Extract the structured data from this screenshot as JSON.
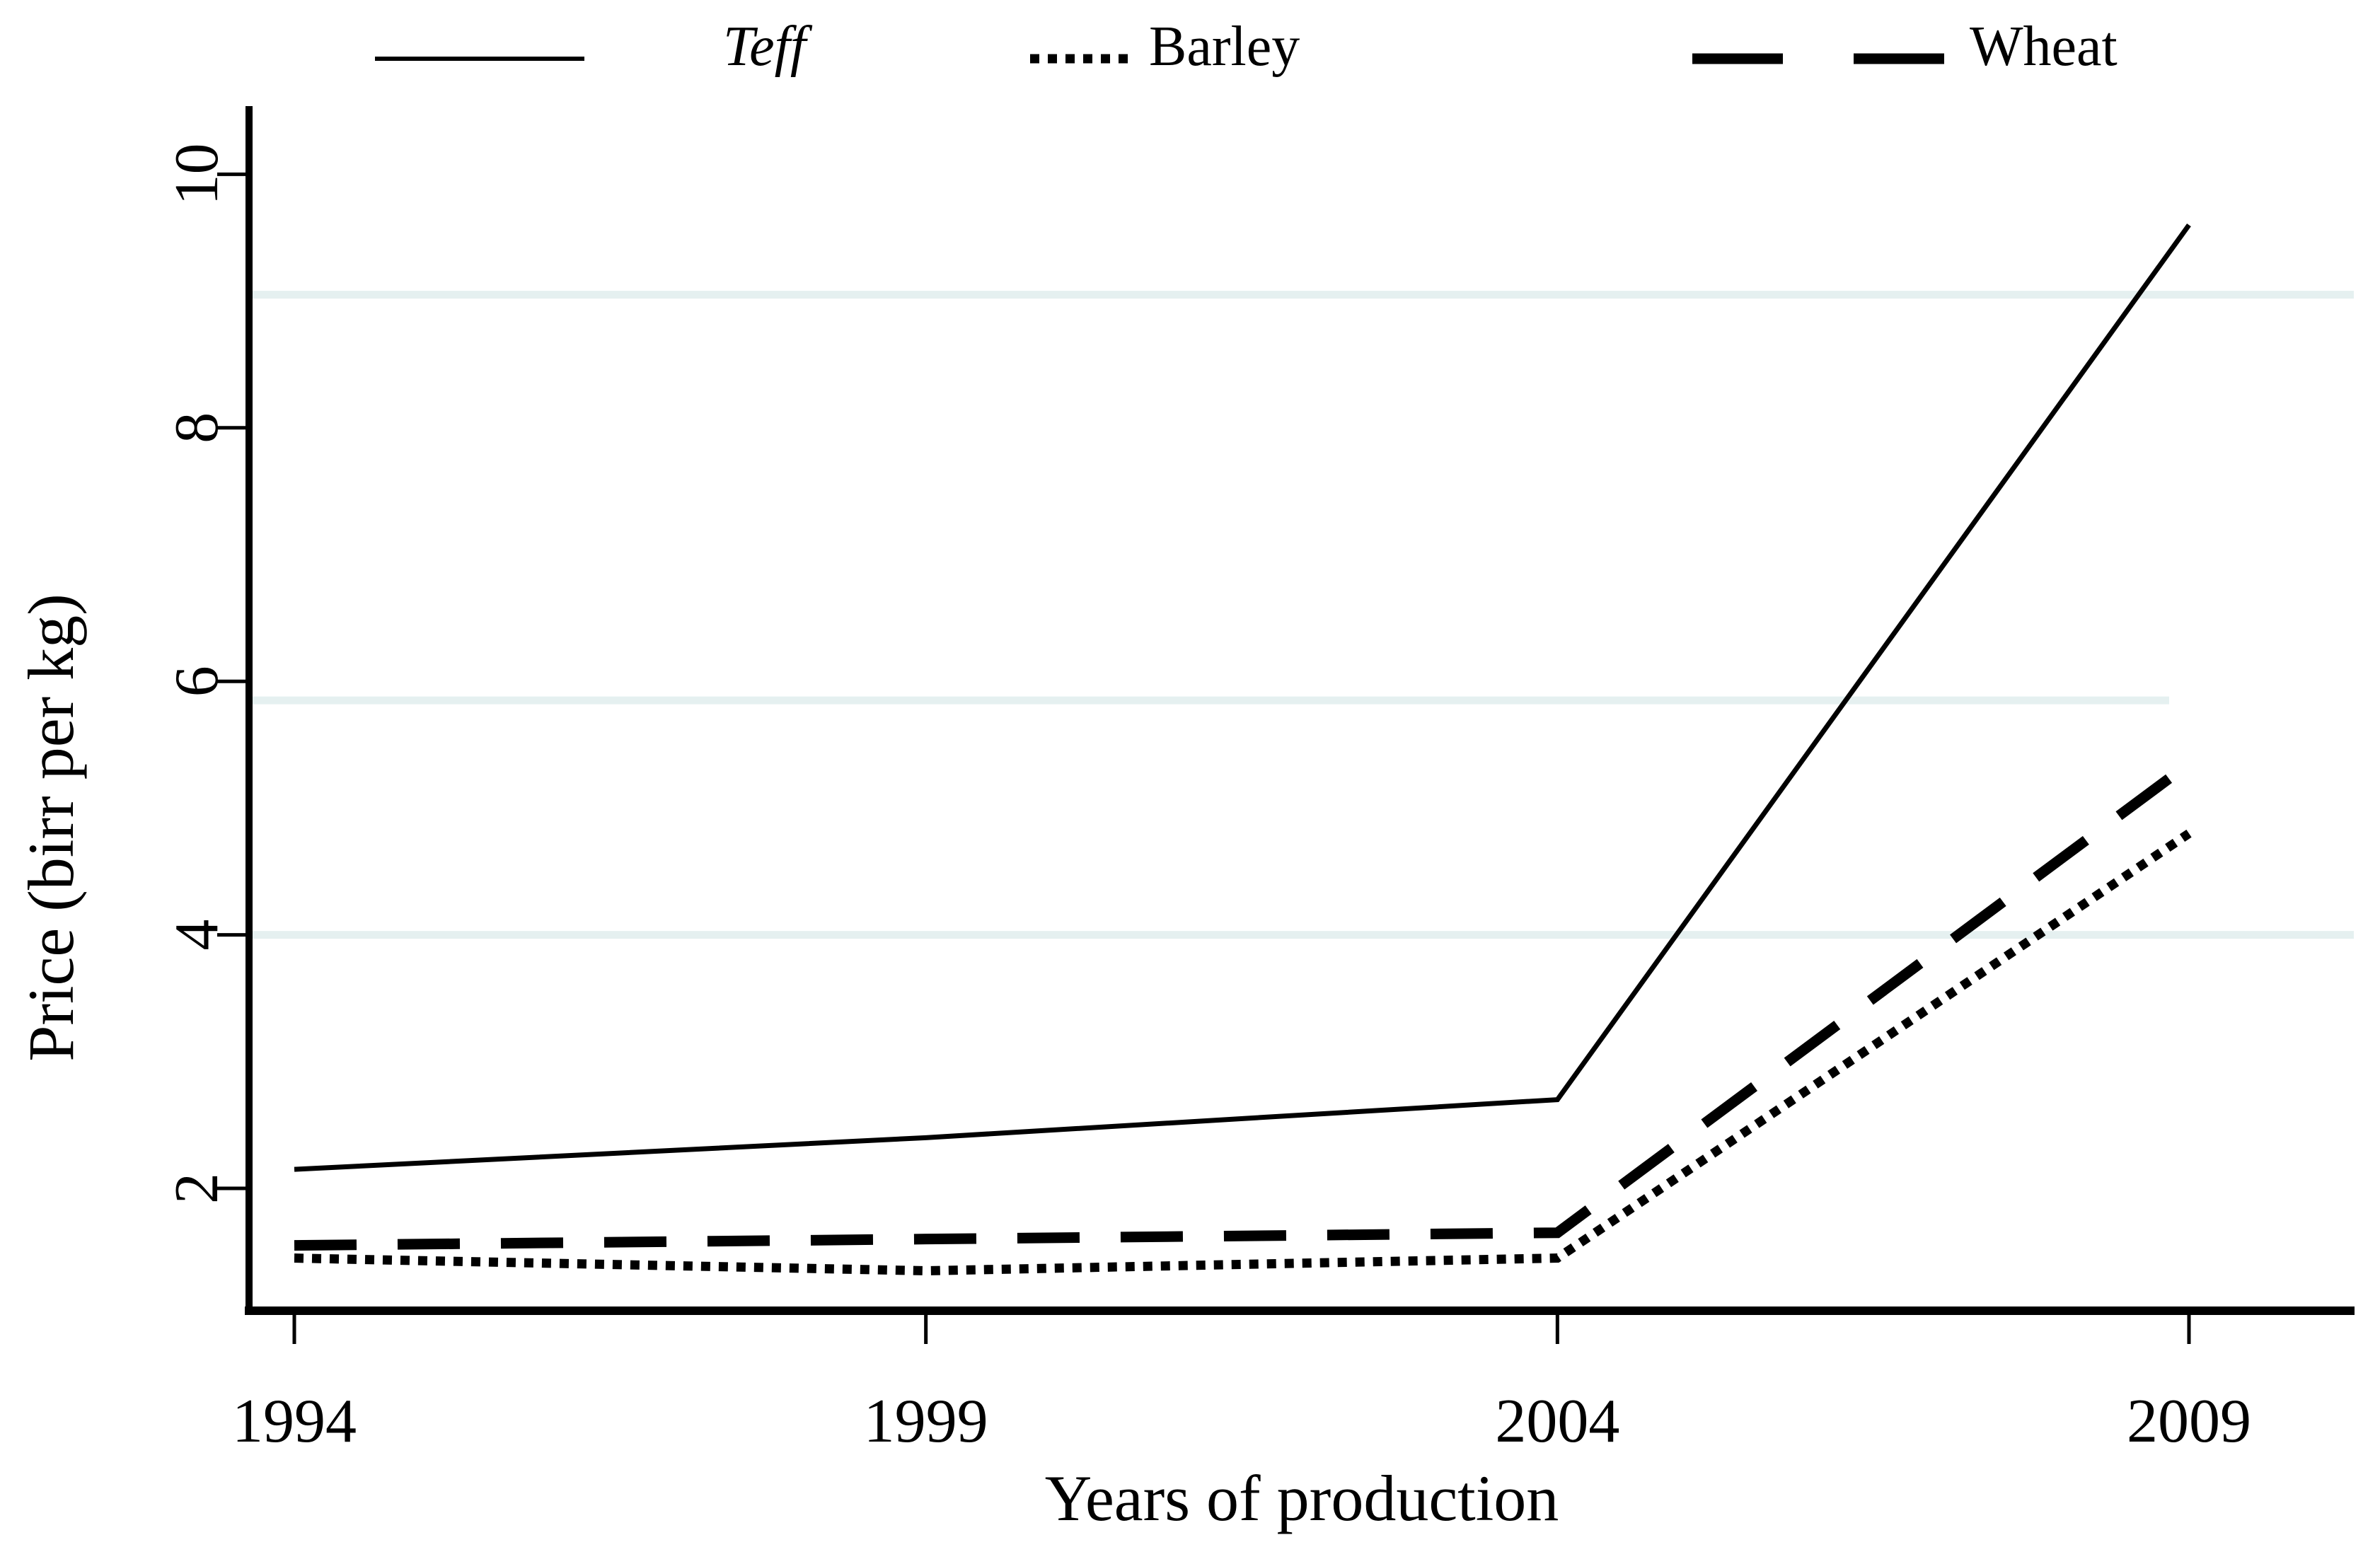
{
  "figure": {
    "background": "#ffffff",
    "line_color": "#000000",
    "faint_grid_color": "#e5f0f0"
  },
  "chart_data": {
    "type": "line",
    "title": "",
    "xlabel": "Years of production",
    "ylabel": "Price (birr per kg)",
    "x": [
      1994,
      1999,
      2004,
      2009
    ],
    "x_tick_labels": [
      "1994",
      "1999",
      "2004",
      "2009"
    ],
    "y_ticks": [
      2,
      4,
      6,
      8,
      10
    ],
    "y_tick_labels": [
      "2",
      "4",
      "6",
      "8",
      "10"
    ],
    "xlim": [
      1993.6,
      2010.3
    ],
    "ylim": [
      1.0,
      10.5
    ],
    "grid": "faint horizontal remnant lines only",
    "faint_gridline_values": [
      9.05,
      5.85,
      4.0
    ],
    "legend_position": "top",
    "series": [
      {
        "name": "Teff",
        "line_style": "solid",
        "color": "#000000",
        "values": [
          2.15,
          2.4,
          2.7,
          9.6
        ]
      },
      {
        "name": "Barley",
        "line_style": "dotted",
        "color": "#000000",
        "values": [
          1.45,
          1.35,
          1.45,
          4.8
        ]
      },
      {
        "name": "Wheat",
        "line_style": "dashed",
        "color": "#000000",
        "values": [
          1.55,
          1.6,
          1.65,
          5.35
        ]
      }
    ]
  }
}
